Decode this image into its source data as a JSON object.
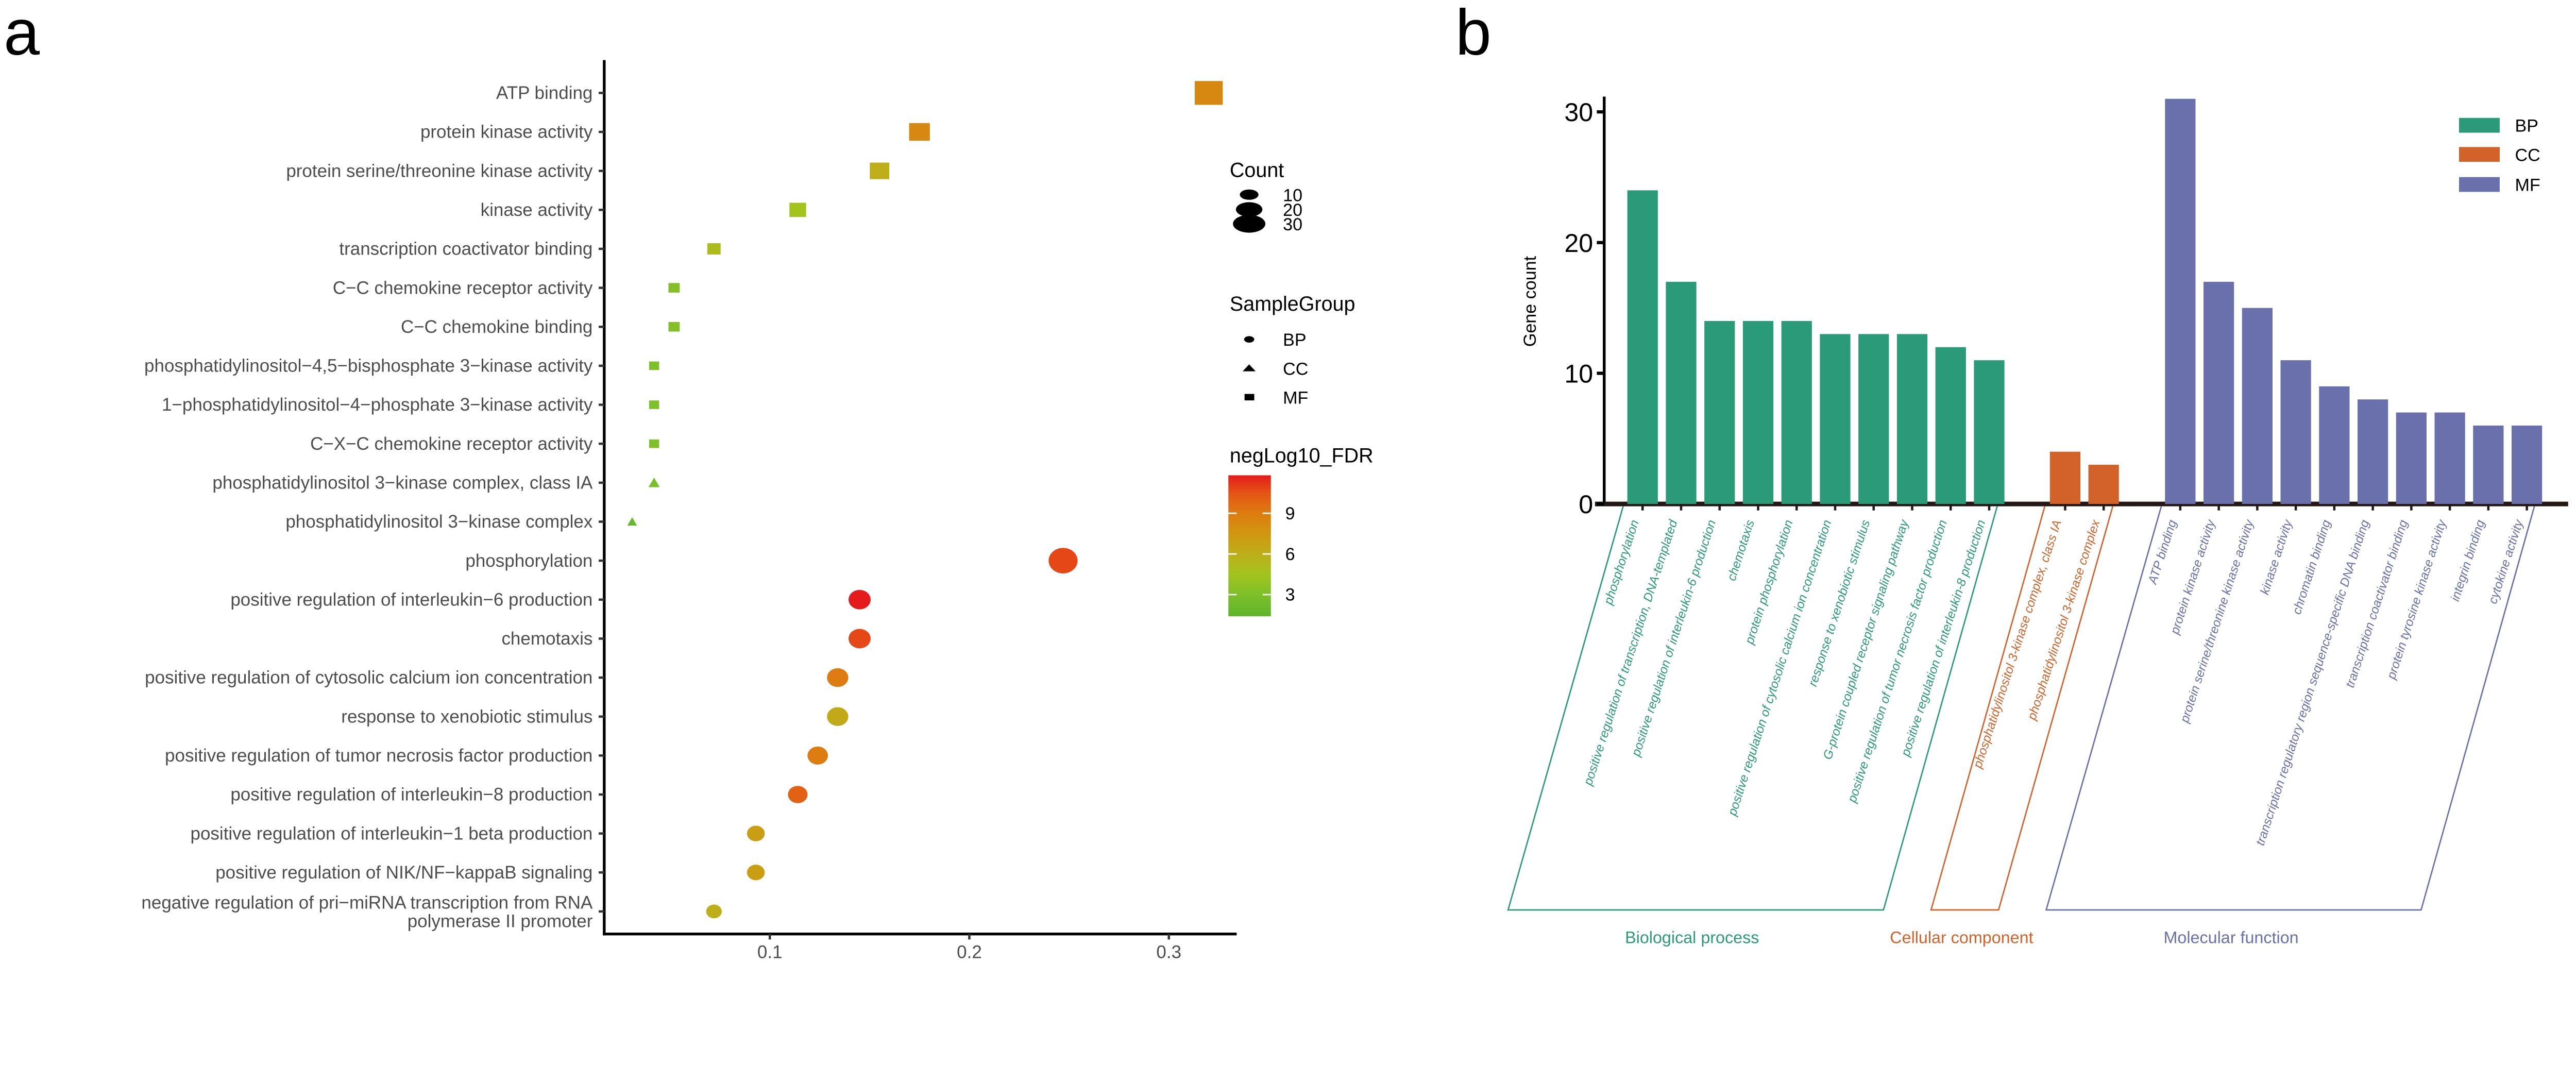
{
  "colors": {
    "BP": "#2b9a78",
    "CC": "#d2622a",
    "MF": "#6a70ab"
  },
  "chart_data": [
    {
      "panel": "a",
      "type": "scatter",
      "xticks": [
        0.1,
        0.2,
        0.3
      ],
      "xlim": [
        0.017,
        0.334
      ],
      "legend_count": {
        "title": "Count",
        "values": [
          10,
          20,
          30
        ]
      },
      "legend_group": {
        "title": "SampleGroup",
        "items": [
          {
            "label": "BP",
            "shape": "circle"
          },
          {
            "label": "CC",
            "shape": "triangle"
          },
          {
            "label": "MF",
            "shape": "square"
          }
        ]
      },
      "legend_color": {
        "title": "negLog10_FDR",
        "ticks": [
          3,
          6,
          9
        ],
        "range": [
          1.4,
          11.8
        ],
        "stops": [
          [
            1.4,
            "#5fb52c"
          ],
          [
            3,
            "#7ebf2a"
          ],
          [
            4.5,
            "#a4c31d"
          ],
          [
            6,
            "#bdae1a"
          ],
          [
            7.5,
            "#d1960f"
          ],
          [
            9,
            "#dd7c10"
          ],
          [
            10.5,
            "#e55416"
          ],
          [
            11.8,
            "#e41a1c"
          ]
        ]
      },
      "legend_placement": "right",
      "points": [
        {
          "term": "ATP binding",
          "group": "MF",
          "x": 0.32,
          "count": 31,
          "negLog10_FDR": 8.3
        },
        {
          "term": "protein kinase activity",
          "group": "MF",
          "x": 0.175,
          "count": 17,
          "negLog10_FDR": 8.3
        },
        {
          "term": "protein serine/threonine kinase activity",
          "group": "MF",
          "x": 0.155,
          "count": 15,
          "negLog10_FDR": 6.0
        },
        {
          "term": "kinase activity",
          "group": "MF",
          "x": 0.114,
          "count": 11,
          "negLog10_FDR": 4.5
        },
        {
          "term": "transcription coactivator binding",
          "group": "MF",
          "x": 0.072,
          "count": 7,
          "negLog10_FDR": 5.0
        },
        {
          "term": "C−C chemokine receptor activity",
          "group": "MF",
          "x": 0.052,
          "count": 5,
          "negLog10_FDR": 3.2
        },
        {
          "term": "C−C chemokine binding",
          "group": "MF",
          "x": 0.052,
          "count": 5,
          "negLog10_FDR": 3.2
        },
        {
          "term": "phosphatidylinositol−4,5−bisphosphate 3−kinase activity",
          "group": "MF",
          "x": 0.042,
          "count": 4,
          "negLog10_FDR": 3.0
        },
        {
          "term": "1−phosphatidylinositol−4−phosphate 3−kinase activity",
          "group": "MF",
          "x": 0.042,
          "count": 4,
          "negLog10_FDR": 3.0
        },
        {
          "term": "C−X−C chemokine receptor activity",
          "group": "MF",
          "x": 0.042,
          "count": 4,
          "negLog10_FDR": 3.0
        },
        {
          "term": "phosphatidylinositol 3−kinase complex, class IA",
          "group": "CC",
          "x": 0.042,
          "count": 4,
          "negLog10_FDR": 2.8
        },
        {
          "term": "phosphatidylinositol 3−kinase complex",
          "group": "CC",
          "x": 0.031,
          "count": 3,
          "negLog10_FDR": 1.8
        },
        {
          "term": "phosphorylation",
          "group": "BP",
          "x": 0.247,
          "count": 24,
          "negLog10_FDR": 10.8
        },
        {
          "term": "positive regulation of interleukin−6 production",
          "group": "BP",
          "x": 0.145,
          "count": 14,
          "negLog10_FDR": 11.8
        },
        {
          "term": "chemotaxis",
          "group": "BP",
          "x": 0.145,
          "count": 14,
          "negLog10_FDR": 10.8
        },
        {
          "term": "positive regulation of cytosolic calcium ion concentration",
          "group": "BP",
          "x": 0.134,
          "count": 13,
          "negLog10_FDR": 9.0
        },
        {
          "term": "response to xenobiotic stimulus",
          "group": "BP",
          "x": 0.134,
          "count": 13,
          "negLog10_FDR": 6.3
        },
        {
          "term": "positive regulation of tumor necrosis factor production",
          "group": "BP",
          "x": 0.124,
          "count": 12,
          "negLog10_FDR": 9.0
        },
        {
          "term": "positive regulation of interleukin−8 production",
          "group": "BP",
          "x": 0.114,
          "count": 11,
          "negLog10_FDR": 10.0
        },
        {
          "term": "positive regulation of interleukin−1 beta production",
          "group": "BP",
          "x": 0.093,
          "count": 9,
          "negLog10_FDR": 7.0
        },
        {
          "term": "positive regulation of NIK/NF−kappaB signaling",
          "group": "BP",
          "x": 0.093,
          "count": 9,
          "negLog10_FDR": 7.0
        },
        {
          "term": [
            "negative regulation of pri−miRNA transcription from RNA",
            "polymerase II promoter"
          ],
          "group": "BP",
          "x": 0.072,
          "count": 7,
          "negLog10_FDR": 6.0
        }
      ]
    },
    {
      "panel": "b",
      "type": "bar",
      "ylabel": "Gene count",
      "yticks": [
        0,
        10,
        20,
        30
      ],
      "ylim": [
        0,
        31.5
      ],
      "legend": [
        "BP",
        "CC",
        "MF"
      ],
      "legend_placement": "top-right",
      "groups": [
        {
          "key": "BP",
          "name": "Biological process",
          "categories": [
            "phosphorylation",
            "positive regulation of transcription, DNA-templated",
            "positive regulation of interleukin-6 production",
            "chemotaxis",
            "protein phosphorylation",
            "positive regulation of cytosolic calcium ion concentration",
            "response to xenobiotic stimulus",
            "G-protein coupled receptor signaling pathway",
            "positive regulation of tumor necrosis factor production",
            "positive regulation of interleukin-8 production"
          ],
          "values": [
            24,
            17,
            14,
            14,
            14,
            13,
            13,
            13,
            12,
            11
          ]
        },
        {
          "key": "CC",
          "name": "Cellular component",
          "categories": [
            "phosphatidylinositol 3-kinase complex, class IA",
            "phosphatidylinositol 3-kinase complex"
          ],
          "values": [
            4,
            3
          ]
        },
        {
          "key": "MF",
          "name": "Molecular function",
          "categories": [
            "ATP binding",
            "protein kinase activity",
            "protein serine/threonine kinase activity",
            "kinase activity",
            "chromatin binding",
            "transcription regulatory region sequence-specific DNA binding",
            "transcription coactivator binding",
            "protein tyrosine kinase activity",
            "integrin binding",
            "cytokine activity"
          ],
          "values": [
            31,
            17,
            15,
            11,
            9,
            8,
            7,
            7,
            6,
            6
          ]
        }
      ]
    }
  ]
}
